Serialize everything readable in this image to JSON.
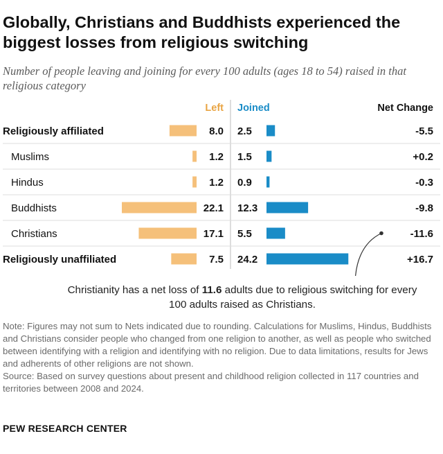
{
  "title": "Globally, Christians and Buddhists experienced the biggest losses from religious switching",
  "subtitle": "Number of people leaving and joining for every 100 adults (ages 18 to 54) raised in that religious category",
  "colors": {
    "left": "#F5C07A",
    "left_header": "#E9A443",
    "joined": "#1A8CC7",
    "joined_header": "#1A8CC7",
    "divider": "#bbbbbb",
    "row_rule": "#dddddd",
    "annotation_line": "#333333"
  },
  "chart_data": {
    "type": "bar",
    "layout": "diverging-table",
    "headers": {
      "left": "Left",
      "joined": "Joined",
      "net": "Net Change"
    },
    "series": [
      {
        "name": "Left",
        "values": [
          8.0,
          1.2,
          1.2,
          22.1,
          17.1,
          7.5
        ]
      },
      {
        "name": "Joined",
        "values": [
          2.5,
          1.5,
          0.9,
          12.3,
          5.5,
          24.2
        ]
      }
    ],
    "rows": [
      {
        "category": "Religiously affiliated",
        "left": 8.0,
        "left_label": "8.0",
        "joined": 2.5,
        "joined_label": "2.5",
        "net": "-5.5",
        "bold": true
      },
      {
        "category": "Muslims",
        "left": 1.2,
        "left_label": "1.2",
        "joined": 1.5,
        "joined_label": "1.5",
        "net": "+0.2",
        "bold": false
      },
      {
        "category": "Hindus",
        "left": 1.2,
        "left_label": "1.2",
        "joined": 0.9,
        "joined_label": "0.9",
        "net": "-0.3",
        "bold": false
      },
      {
        "category": "Buddhists",
        "left": 22.1,
        "left_label": "22.1",
        "joined": 12.3,
        "joined_label": "12.3",
        "net": "-9.8",
        "bold": false
      },
      {
        "category": "Christians",
        "left": 17.1,
        "left_label": "17.1",
        "joined": 5.5,
        "joined_label": "5.5",
        "net": "-11.6",
        "bold": false
      },
      {
        "category": "Religiously unaffiliated",
        "left": 7.5,
        "left_label": "7.5",
        "joined": 24.2,
        "joined_label": "24.2",
        "net": "+16.7",
        "bold": true
      }
    ],
    "annotation": {
      "row": "Christians",
      "before": "Christianity has a net loss of ",
      "bold": "11.6",
      "after": " adults due to religious switching for every 100 adults raised as Christians."
    }
  },
  "notes": {
    "note": "Note: Figures may not sum to Nets indicated due to rounding. Calculations for Muslims, Hindus, Buddhists and Christians consider people who changed from one religion to another, as well as people who switched between identifying with a religion and identifying with no religion. Due to data limitations, results for Jews and adherents of other religions are not shown.",
    "source": "Source: Based on survey questions about present and childhood religion collected in 117 countries and territories between 2008 and 2024."
  },
  "brand": "PEW RESEARCH CENTER"
}
